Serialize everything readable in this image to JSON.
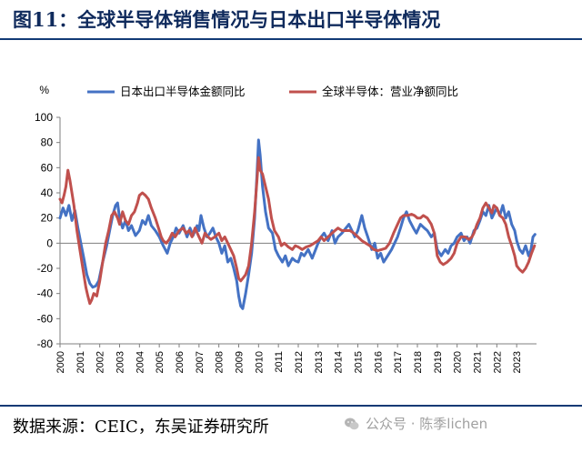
{
  "header": {
    "title": "图11：全球半导体销售情况与日本出口半导体情况"
  },
  "footer": {
    "source": "数据来源：CEIC，东吴证券研究所"
  },
  "watermark": {
    "text": "公众号 · 陈季lichen",
    "icon": "wechat-icon"
  },
  "colors": {
    "series_blue": "#4472c4",
    "series_red": "#c0504d",
    "accent": "#123a75"
  },
  "chart_data": {
    "type": "line",
    "title": "",
    "ylabel": "%",
    "xlabel": "",
    "ylim": [
      -80,
      100
    ],
    "yticks": [
      -80,
      -60,
      -40,
      -20,
      0,
      20,
      40,
      60,
      80,
      100
    ],
    "xlim": [
      2000,
      2024
    ],
    "xticks": [
      "2000",
      "2001",
      "2002",
      "2003",
      "2004",
      "2005",
      "2006",
      "2007",
      "2008",
      "2009",
      "2010",
      "2011",
      "2012",
      "2013",
      "2014",
      "2015",
      "2016",
      "2017",
      "2018",
      "2019",
      "2020",
      "2021",
      "2022",
      "2023"
    ],
    "legend_position": "top",
    "series": [
      {
        "name": "日本出口半导体金额同比",
        "color": "#4472c4",
        "points": [
          [
            2000.0,
            20
          ],
          [
            2000.15,
            28
          ],
          [
            2000.3,
            22
          ],
          [
            2000.45,
            30
          ],
          [
            2000.6,
            18
          ],
          [
            2000.75,
            26
          ],
          [
            2000.9,
            12
          ],
          [
            2001.05,
            0
          ],
          [
            2001.2,
            -12
          ],
          [
            2001.35,
            -25
          ],
          [
            2001.5,
            -32
          ],
          [
            2001.65,
            -35
          ],
          [
            2001.8,
            -34
          ],
          [
            2001.95,
            -30
          ],
          [
            2002.15,
            -15
          ],
          [
            2002.35,
            -2
          ],
          [
            2002.5,
            10
          ],
          [
            2002.65,
            22
          ],
          [
            2002.8,
            30
          ],
          [
            2002.9,
            32
          ],
          [
            2003.0,
            20
          ],
          [
            2003.15,
            12
          ],
          [
            2003.3,
            18
          ],
          [
            2003.45,
            10
          ],
          [
            2003.6,
            14
          ],
          [
            2003.8,
            6
          ],
          [
            2004.0,
            10
          ],
          [
            2004.15,
            18
          ],
          [
            2004.3,
            15
          ],
          [
            2004.45,
            22
          ],
          [
            2004.6,
            14
          ],
          [
            2004.8,
            10
          ],
          [
            2005.0,
            5
          ],
          [
            2005.2,
            -2
          ],
          [
            2005.4,
            -8
          ],
          [
            2005.55,
            0
          ],
          [
            2005.7,
            5
          ],
          [
            2005.85,
            12
          ],
          [
            2006.0,
            8
          ],
          [
            2006.2,
            14
          ],
          [
            2006.4,
            5
          ],
          [
            2006.55,
            12
          ],
          [
            2006.7,
            6
          ],
          [
            2006.9,
            14
          ],
          [
            2007.0,
            10
          ],
          [
            2007.1,
            22
          ],
          [
            2007.25,
            12
          ],
          [
            2007.4,
            5
          ],
          [
            2007.55,
            8
          ],
          [
            2007.7,
            12
          ],
          [
            2007.85,
            5
          ],
          [
            2008.0,
            0
          ],
          [
            2008.15,
            -8
          ],
          [
            2008.3,
            -2
          ],
          [
            2008.45,
            -15
          ],
          [
            2008.6,
            -12
          ],
          [
            2008.75,
            -20
          ],
          [
            2008.9,
            -30
          ],
          [
            2009.0,
            -42
          ],
          [
            2009.1,
            -50
          ],
          [
            2009.2,
            -52
          ],
          [
            2009.35,
            -40
          ],
          [
            2009.5,
            -25
          ],
          [
            2009.65,
            -8
          ],
          [
            2009.8,
            20
          ],
          [
            2009.92,
            55
          ],
          [
            2010.0,
            82
          ],
          [
            2010.08,
            70
          ],
          [
            2010.2,
            45
          ],
          [
            2010.35,
            25
          ],
          [
            2010.5,
            12
          ],
          [
            2010.7,
            8
          ],
          [
            2010.85,
            -5
          ],
          [
            2011.0,
            -10
          ],
          [
            2011.2,
            -15
          ],
          [
            2011.35,
            -10
          ],
          [
            2011.5,
            -18
          ],
          [
            2011.7,
            -12
          ],
          [
            2011.85,
            -14
          ],
          [
            2012.0,
            -15
          ],
          [
            2012.15,
            -8
          ],
          [
            2012.3,
            -10
          ],
          [
            2012.5,
            -5
          ],
          [
            2012.7,
            -12
          ],
          [
            2012.85,
            -6
          ],
          [
            2013.0,
            0
          ],
          [
            2013.15,
            5
          ],
          [
            2013.3,
            8
          ],
          [
            2013.5,
            2
          ],
          [
            2013.7,
            10
          ],
          [
            2013.85,
            0
          ],
          [
            2014.0,
            5
          ],
          [
            2014.2,
            8
          ],
          [
            2014.4,
            12
          ],
          [
            2014.55,
            15
          ],
          [
            2014.7,
            10
          ],
          [
            2014.85,
            5
          ],
          [
            2015.0,
            10
          ],
          [
            2015.2,
            22
          ],
          [
            2015.35,
            12
          ],
          [
            2015.5,
            5
          ],
          [
            2015.7,
            -5
          ],
          [
            2015.85,
            0
          ],
          [
            2016.0,
            -12
          ],
          [
            2016.15,
            -8
          ],
          [
            2016.3,
            -15
          ],
          [
            2016.5,
            -10
          ],
          [
            2016.7,
            -5
          ],
          [
            2016.85,
            0
          ],
          [
            2017.0,
            5
          ],
          [
            2017.15,
            12
          ],
          [
            2017.3,
            20
          ],
          [
            2017.45,
            25
          ],
          [
            2017.6,
            18
          ],
          [
            2017.8,
            12
          ],
          [
            2017.95,
            8
          ],
          [
            2018.15,
            15
          ],
          [
            2018.35,
            12
          ],
          [
            2018.5,
            10
          ],
          [
            2018.7,
            5
          ],
          [
            2018.85,
            8
          ],
          [
            2019.0,
            -5
          ],
          [
            2019.2,
            -10
          ],
          [
            2019.4,
            -5
          ],
          [
            2019.55,
            -8
          ],
          [
            2019.7,
            -2
          ],
          [
            2019.85,
            0
          ],
          [
            2020.0,
            5
          ],
          [
            2020.2,
            8
          ],
          [
            2020.35,
            2
          ],
          [
            2020.5,
            5
          ],
          [
            2020.65,
            0
          ],
          [
            2020.85,
            10
          ],
          [
            2021.0,
            12
          ],
          [
            2021.15,
            18
          ],
          [
            2021.3,
            25
          ],
          [
            2021.45,
            22
          ],
          [
            2021.6,
            30
          ],
          [
            2021.75,
            20
          ],
          [
            2021.9,
            25
          ],
          [
            2022.0,
            28
          ],
          [
            2022.15,
            22
          ],
          [
            2022.3,
            30
          ],
          [
            2022.45,
            20
          ],
          [
            2022.6,
            25
          ],
          [
            2022.75,
            15
          ],
          [
            2022.9,
            10
          ],
          [
            2023.0,
            2
          ],
          [
            2023.15,
            -5
          ],
          [
            2023.3,
            -8
          ],
          [
            2023.45,
            -2
          ],
          [
            2023.6,
            -10
          ],
          [
            2023.72,
            -5
          ],
          [
            2023.82,
            5
          ],
          [
            2023.92,
            7
          ]
        ]
      },
      {
        "name": "全球半导体：营业净额同比",
        "color": "#c0504d",
        "points": [
          [
            2000.0,
            35
          ],
          [
            2000.1,
            32
          ],
          [
            2000.2,
            38
          ],
          [
            2000.3,
            45
          ],
          [
            2000.4,
            58
          ],
          [
            2000.5,
            50
          ],
          [
            2000.6,
            40
          ],
          [
            2000.7,
            30
          ],
          [
            2000.85,
            10
          ],
          [
            2001.0,
            -5
          ],
          [
            2001.15,
            -20
          ],
          [
            2001.3,
            -35
          ],
          [
            2001.4,
            -42
          ],
          [
            2001.5,
            -48
          ],
          [
            2001.6,
            -45
          ],
          [
            2001.7,
            -40
          ],
          [
            2001.85,
            -42
          ],
          [
            2002.0,
            -30
          ],
          [
            2002.15,
            -15
          ],
          [
            2002.3,
            0
          ],
          [
            2002.45,
            10
          ],
          [
            2002.6,
            22
          ],
          [
            2002.75,
            25
          ],
          [
            2002.9,
            20
          ],
          [
            2003.0,
            15
          ],
          [
            2003.15,
            25
          ],
          [
            2003.3,
            18
          ],
          [
            2003.45,
            15
          ],
          [
            2003.6,
            22
          ],
          [
            2003.75,
            25
          ],
          [
            2003.9,
            32
          ],
          [
            2004.0,
            38
          ],
          [
            2004.15,
            40
          ],
          [
            2004.3,
            38
          ],
          [
            2004.45,
            35
          ],
          [
            2004.6,
            28
          ],
          [
            2004.8,
            20
          ],
          [
            2005.0,
            10
          ],
          [
            2005.1,
            5
          ],
          [
            2005.2,
            2
          ],
          [
            2005.35,
            0
          ],
          [
            2005.5,
            3
          ],
          [
            2005.65,
            8
          ],
          [
            2005.8,
            5
          ],
          [
            2006.0,
            10
          ],
          [
            2006.2,
            12
          ],
          [
            2006.35,
            8
          ],
          [
            2006.5,
            10
          ],
          [
            2006.65,
            5
          ],
          [
            2006.8,
            12
          ],
          [
            2007.0,
            5
          ],
          [
            2007.15,
            0
          ],
          [
            2007.3,
            8
          ],
          [
            2007.45,
            5
          ],
          [
            2007.6,
            3
          ],
          [
            2007.8,
            5
          ],
          [
            2008.0,
            8
          ],
          [
            2008.15,
            2
          ],
          [
            2008.3,
            5
          ],
          [
            2008.45,
            0
          ],
          [
            2008.6,
            -5
          ],
          [
            2008.75,
            -10
          ],
          [
            2008.9,
            -20
          ],
          [
            2009.0,
            -28
          ],
          [
            2009.1,
            -30
          ],
          [
            2009.2,
            -28
          ],
          [
            2009.35,
            -25
          ],
          [
            2009.5,
            -18
          ],
          [
            2009.65,
            0
          ],
          [
            2009.8,
            25
          ],
          [
            2009.92,
            50
          ],
          [
            2010.0,
            68
          ],
          [
            2010.08,
            58
          ],
          [
            2010.2,
            55
          ],
          [
            2010.35,
            45
          ],
          [
            2010.5,
            35
          ],
          [
            2010.65,
            20
          ],
          [
            2010.8,
            10
          ],
          [
            2011.0,
            5
          ],
          [
            2011.15,
            -2
          ],
          [
            2011.3,
            0
          ],
          [
            2011.5,
            -3
          ],
          [
            2011.7,
            -5
          ],
          [
            2011.85,
            -2
          ],
          [
            2012.0,
            -3
          ],
          [
            2012.2,
            -5
          ],
          [
            2012.4,
            -3
          ],
          [
            2012.6,
            -2
          ],
          [
            2012.8,
            0
          ],
          [
            2013.0,
            2
          ],
          [
            2013.15,
            5
          ],
          [
            2013.3,
            2
          ],
          [
            2013.5,
            5
          ],
          [
            2013.7,
            8
          ],
          [
            2013.85,
            10
          ],
          [
            2014.0,
            12
          ],
          [
            2014.2,
            10
          ],
          [
            2014.4,
            10
          ],
          [
            2014.6,
            10
          ],
          [
            2014.8,
            8
          ],
          [
            2015.0,
            5
          ],
          [
            2015.2,
            2
          ],
          [
            2015.4,
            0
          ],
          [
            2015.6,
            -2
          ],
          [
            2015.8,
            -5
          ],
          [
            2016.0,
            -6
          ],
          [
            2016.2,
            -5
          ],
          [
            2016.4,
            -4
          ],
          [
            2016.6,
            0
          ],
          [
            2016.8,
            8
          ],
          [
            2017.0,
            15
          ],
          [
            2017.15,
            20
          ],
          [
            2017.3,
            22
          ],
          [
            2017.5,
            22
          ],
          [
            2017.7,
            23
          ],
          [
            2017.85,
            22
          ],
          [
            2018.0,
            20
          ],
          [
            2018.15,
            20
          ],
          [
            2018.3,
            22
          ],
          [
            2018.5,
            20
          ],
          [
            2018.7,
            15
          ],
          [
            2018.85,
            8
          ],
          [
            2019.0,
            -10
          ],
          [
            2019.15,
            -15
          ],
          [
            2019.3,
            -17
          ],
          [
            2019.5,
            -15
          ],
          [
            2019.7,
            -12
          ],
          [
            2019.85,
            -8
          ],
          [
            2020.0,
            0
          ],
          [
            2020.2,
            5
          ],
          [
            2020.4,
            5
          ],
          [
            2020.6,
            3
          ],
          [
            2020.75,
            5
          ],
          [
            2020.85,
            8
          ],
          [
            2021.0,
            15
          ],
          [
            2021.15,
            20
          ],
          [
            2021.3,
            28
          ],
          [
            2021.45,
            32
          ],
          [
            2021.6,
            28
          ],
          [
            2021.75,
            24
          ],
          [
            2021.85,
            30
          ],
          [
            2022.0,
            28
          ],
          [
            2022.15,
            22
          ],
          [
            2022.3,
            20
          ],
          [
            2022.45,
            15
          ],
          [
            2022.6,
            5
          ],
          [
            2022.75,
            -2
          ],
          [
            2022.9,
            -10
          ],
          [
            2023.0,
            -18
          ],
          [
            2023.15,
            -21
          ],
          [
            2023.3,
            -23
          ],
          [
            2023.45,
            -20
          ],
          [
            2023.6,
            -15
          ],
          [
            2023.75,
            -8
          ],
          [
            2023.9,
            -2
          ]
        ]
      }
    ]
  }
}
